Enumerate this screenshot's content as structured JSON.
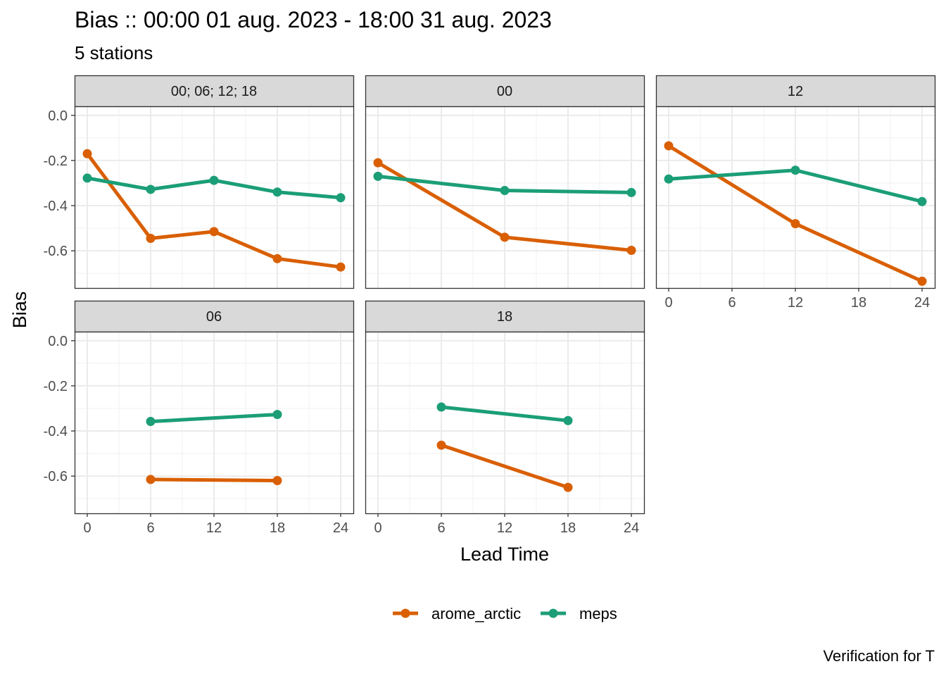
{
  "title": "Bias :: 00:00 01 aug. 2023 - 18:00 31 aug. 2023",
  "subtitle": "5 stations",
  "caption": "Verification for T",
  "colors": {
    "arome_arctic": "#D95F02",
    "meps": "#1B9E77"
  },
  "chart_data": {
    "type": "line",
    "xlabel": "Lead Time",
    "ylabel": "Bias",
    "x_ticks": [
      0,
      6,
      12,
      18,
      24
    ],
    "y_ticks": [
      0.0,
      -0.2,
      -0.4,
      -0.6
    ],
    "y_tick_labels": [
      "0.0",
      "-0.2",
      "-0.4",
      "-0.6"
    ],
    "x_tick_labels": [
      "0",
      "6",
      "12",
      "18",
      "24"
    ],
    "xlim": [
      -1.2,
      25.2
    ],
    "ylim": [
      -0.765,
      0.04
    ],
    "grid": true,
    "legend_position": "bottom",
    "legend": [
      "arome_arctic",
      "meps"
    ],
    "panels": [
      {
        "strip": "00; 06; 12; 18",
        "series": [
          {
            "name": "arome_arctic",
            "x": [
              0,
              6,
              12,
              18,
              24
            ],
            "y": [
              -0.17,
              -0.545,
              -0.515,
              -0.635,
              -0.672
            ]
          },
          {
            "name": "meps",
            "x": [
              0,
              6,
              12,
              18,
              24
            ],
            "y": [
              -0.278,
              -0.328,
              -0.288,
              -0.34,
              -0.365
            ]
          }
        ]
      },
      {
        "strip": "00",
        "series": [
          {
            "name": "arome_arctic",
            "x": [
              0,
              12,
              24
            ],
            "y": [
              -0.21,
              -0.54,
              -0.598
            ]
          },
          {
            "name": "meps",
            "x": [
              0,
              12,
              24
            ],
            "y": [
              -0.27,
              -0.333,
              -0.342
            ]
          }
        ]
      },
      {
        "strip": "12",
        "series": [
          {
            "name": "arome_arctic",
            "x": [
              0,
              12,
              24
            ],
            "y": [
              -0.135,
              -0.48,
              -0.735
            ]
          },
          {
            "name": "meps",
            "x": [
              0,
              12,
              24
            ],
            "y": [
              -0.282,
              -0.243,
              -0.382
            ]
          }
        ]
      },
      {
        "strip": "06",
        "series": [
          {
            "name": "arome_arctic",
            "x": [
              6,
              18
            ],
            "y": [
              -0.615,
              -0.62
            ]
          },
          {
            "name": "meps",
            "x": [
              6,
              18
            ],
            "y": [
              -0.358,
              -0.327
            ]
          }
        ]
      },
      {
        "strip": "18",
        "series": [
          {
            "name": "arome_arctic",
            "x": [
              6,
              18
            ],
            "y": [
              -0.463,
              -0.65
            ]
          },
          {
            "name": "meps",
            "x": [
              6,
              18
            ],
            "y": [
              -0.294,
              -0.354
            ]
          }
        ]
      }
    ]
  }
}
